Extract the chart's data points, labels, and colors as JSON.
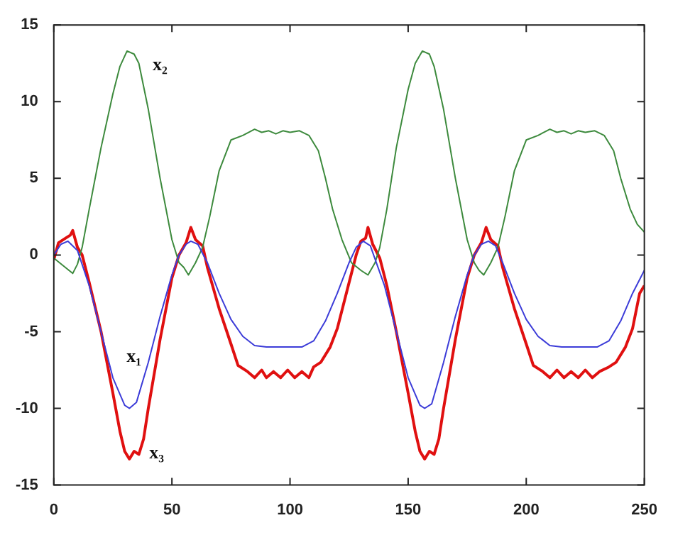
{
  "chart_data": {
    "type": "line",
    "xlim": [
      0,
      250
    ],
    "xticks": [
      0,
      50,
      100,
      150,
      200,
      250
    ],
    "ylim": [
      -15,
      15
    ],
    "yticks": [
      -15,
      -10,
      -5,
      0,
      5,
      10,
      15
    ],
    "grid": false,
    "legend": false,
    "marker": "none",
    "line_style": "solid",
    "series": [
      {
        "name": "x₁",
        "color": "#3c3cd8",
        "x": [
          0,
          3,
          6,
          10,
          15,
          20,
          25,
          30,
          32,
          35,
          40,
          45,
          50,
          53,
          56,
          58,
          61,
          65,
          70,
          75,
          80,
          85,
          90,
          100,
          105,
          110,
          115,
          120,
          125,
          128,
          131,
          134,
          140,
          145,
          150,
          155,
          157,
          160,
          165,
          170,
          175,
          178,
          181,
          184,
          187,
          190,
          195,
          200,
          205,
          210,
          215,
          225,
          230,
          235,
          240,
          245,
          250
        ],
        "values": [
          0,
          0.7,
          0.9,
          0.3,
          -2,
          -5,
          -8,
          -9.8,
          -10,
          -9.6,
          -7,
          -4,
          -1.3,
          0,
          0.7,
          0.9,
          0.7,
          -0.5,
          -2.5,
          -4.2,
          -5.3,
          -5.9,
          -6,
          -6,
          -6,
          -5.6,
          -4.3,
          -2.5,
          -0.5,
          0.5,
          0.9,
          0.6,
          -2,
          -5,
          -8,
          -9.8,
          -10,
          -9.7,
          -7,
          -4,
          -1.3,
          0,
          0.7,
          0.9,
          0.6,
          -0.5,
          -2.5,
          -4.2,
          -5.3,
          -5.9,
          -6,
          -6,
          -6,
          -5.6,
          -4.3,
          -2.5,
          -1
        ]
      },
      {
        "name": "x₂",
        "color": "#3d8a3d",
        "x": [
          0,
          4,
          8,
          10,
          12,
          15,
          20,
          25,
          28,
          31,
          34,
          36,
          40,
          45,
          50,
          53,
          55,
          57,
          60,
          63,
          66,
          70,
          75,
          80,
          85,
          88,
          91,
          94,
          97,
          100,
          104,
          108,
          112,
          115,
          118,
          122,
          126,
          130,
          133,
          136,
          138,
          141,
          145,
          150,
          153,
          156,
          159,
          161,
          165,
          170,
          175,
          178,
          180,
          182,
          185,
          188,
          191,
          195,
          200,
          205,
          210,
          213,
          216,
          219,
          222,
          225,
          229,
          233,
          237,
          240,
          244,
          247,
          250
        ],
        "values": [
          -0.2,
          -0.7,
          -1.2,
          -0.6,
          0.5,
          3,
          7,
          10.5,
          12.3,
          13.3,
          13.1,
          12.5,
          9.5,
          5,
          1,
          -0.5,
          -0.8,
          -1.3,
          -0.5,
          0.5,
          2.5,
          5.5,
          7.5,
          7.8,
          8.2,
          8,
          8.1,
          7.9,
          8.1,
          8,
          8.1,
          7.8,
          6.8,
          5,
          3,
          1,
          -0.5,
          -1,
          -1.3,
          -0.5,
          0.5,
          3,
          7,
          10.8,
          12.5,
          13.3,
          13.1,
          12.3,
          9.5,
          5,
          1,
          -0.5,
          -1,
          -1.3,
          -0.5,
          0.5,
          2.5,
          5.5,
          7.5,
          7.8,
          8.2,
          8,
          8.1,
          7.9,
          8.1,
          8,
          8.1,
          7.8,
          6.8,
          5,
          3,
          2,
          1.5
        ]
      },
      {
        "name": "x₃",
        "color": "#e01010",
        "x": [
          0,
          2,
          5,
          7,
          8,
          10,
          12,
          15,
          20,
          25,
          28,
          30,
          32,
          34,
          36,
          38,
          40,
          45,
          50,
          53,
          56,
          58,
          60,
          63,
          65,
          70,
          75,
          78,
          82,
          85,
          88,
          90,
          93,
          96,
          99,
          102,
          105,
          108,
          110,
          113,
          117,
          120,
          123,
          125,
          128,
          130,
          132,
          133,
          135,
          138,
          141,
          145,
          150,
          153,
          155,
          157,
          159,
          161,
          163,
          165,
          170,
          175,
          178,
          181,
          183,
          185,
          188,
          190,
          195,
          200,
          203,
          207,
          210,
          213,
          216,
          219,
          222,
          225,
          228,
          231,
          235,
          238,
          242,
          245,
          248,
          250
        ],
        "values": [
          -0.3,
          0.8,
          1.1,
          1.3,
          1.6,
          0.5,
          0,
          -1.8,
          -5,
          -9,
          -11.5,
          -12.8,
          -13.3,
          -12.8,
          -13,
          -12,
          -10,
          -5.5,
          -1.5,
          0,
          0.8,
          1.8,
          1,
          0.6,
          -0.8,
          -3.5,
          -5.8,
          -7.2,
          -7.6,
          -8,
          -7.5,
          -8,
          -7.6,
          -8,
          -7.5,
          -8,
          -7.6,
          -8,
          -7.3,
          -7,
          -6,
          -4.8,
          -3,
          -1.8,
          0,
          0.9,
          1.1,
          1.8,
          0.7,
          -0.2,
          -2,
          -5,
          -9,
          -11.5,
          -12.8,
          -13.3,
          -12.8,
          -13,
          -12,
          -10,
          -5.5,
          -1.5,
          0,
          0.8,
          1.8,
          1,
          0.6,
          -0.8,
          -3.5,
          -5.8,
          -7.2,
          -7.6,
          -8,
          -7.5,
          -8,
          -7.6,
          -8,
          -7.5,
          -8,
          -7.6,
          -7.3,
          -7,
          -6,
          -4.8,
          -2.5,
          -2
        ]
      }
    ]
  }
}
